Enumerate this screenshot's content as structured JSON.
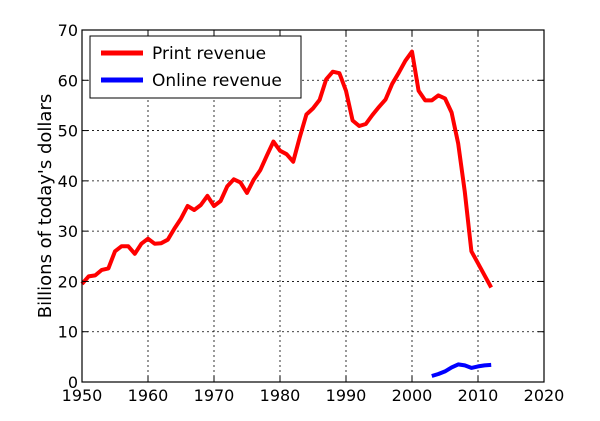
{
  "colors": {
    "print": "#ff0000",
    "online": "#0000ff"
  },
  "chart_data": {
    "type": "line",
    "title": "",
    "xlabel": "",
    "ylabel": "Billions of today's dollars",
    "xlim": [
      1950,
      2020
    ],
    "ylim": [
      0,
      70
    ],
    "xticks": [
      1950,
      1960,
      1970,
      1980,
      1990,
      2000,
      2010,
      2020
    ],
    "yticks": [
      0,
      10,
      20,
      30,
      40,
      50,
      60,
      70
    ],
    "grid": true,
    "legend_position": "top-left",
    "series": [
      {
        "name": "Print revenue",
        "color": "#ff0000",
        "x": [
          1950,
          1951,
          1952,
          1953,
          1954,
          1955,
          1956,
          1957,
          1958,
          1959,
          1960,
          1961,
          1962,
          1963,
          1964,
          1965,
          1966,
          1967,
          1968,
          1969,
          1970,
          1971,
          1972,
          1973,
          1974,
          1975,
          1976,
          1977,
          1978,
          1979,
          1980,
          1981,
          1982,
          1983,
          1984,
          1985,
          1986,
          1987,
          1988,
          1989,
          1990,
          1991,
          1992,
          1993,
          1994,
          1995,
          1996,
          1997,
          1998,
          1999,
          2000,
          2001,
          2002,
          2003,
          2004,
          2005,
          2006,
          2007,
          2008,
          2009,
          2010,
          2011,
          2012
        ],
        "y": [
          19.5,
          21,
          21.2,
          22.3,
          22.6,
          26,
          27,
          27,
          25.5,
          27.5,
          28.5,
          27.5,
          27.6,
          28.3,
          30.5,
          32.5,
          35,
          34.2,
          35.2,
          37,
          35,
          36,
          38.9,
          40.3,
          39.7,
          37.6,
          40.2,
          42.1,
          45,
          47.8,
          46,
          45.3,
          43.8,
          48.7,
          53.2,
          54.4,
          56.1,
          60.2,
          61.7,
          61.4,
          57.9,
          52,
          50.9,
          51.3,
          53.1,
          54.7,
          56.2,
          59.3,
          61.5,
          63.9,
          65.7,
          57.9,
          56,
          56,
          57,
          56.4,
          53.6,
          47.4,
          37.8,
          26,
          23.6,
          21.2,
          18.8
        ]
      },
      {
        "name": "Online revenue",
        "color": "#0000ff",
        "x": [
          2003,
          2004,
          2005,
          2006,
          2007,
          2008,
          2009,
          2010,
          2011,
          2012
        ],
        "y": [
          1.2,
          1.6,
          2.1,
          2.9,
          3.5,
          3.3,
          2.8,
          3.1,
          3.3,
          3.4
        ]
      }
    ]
  }
}
